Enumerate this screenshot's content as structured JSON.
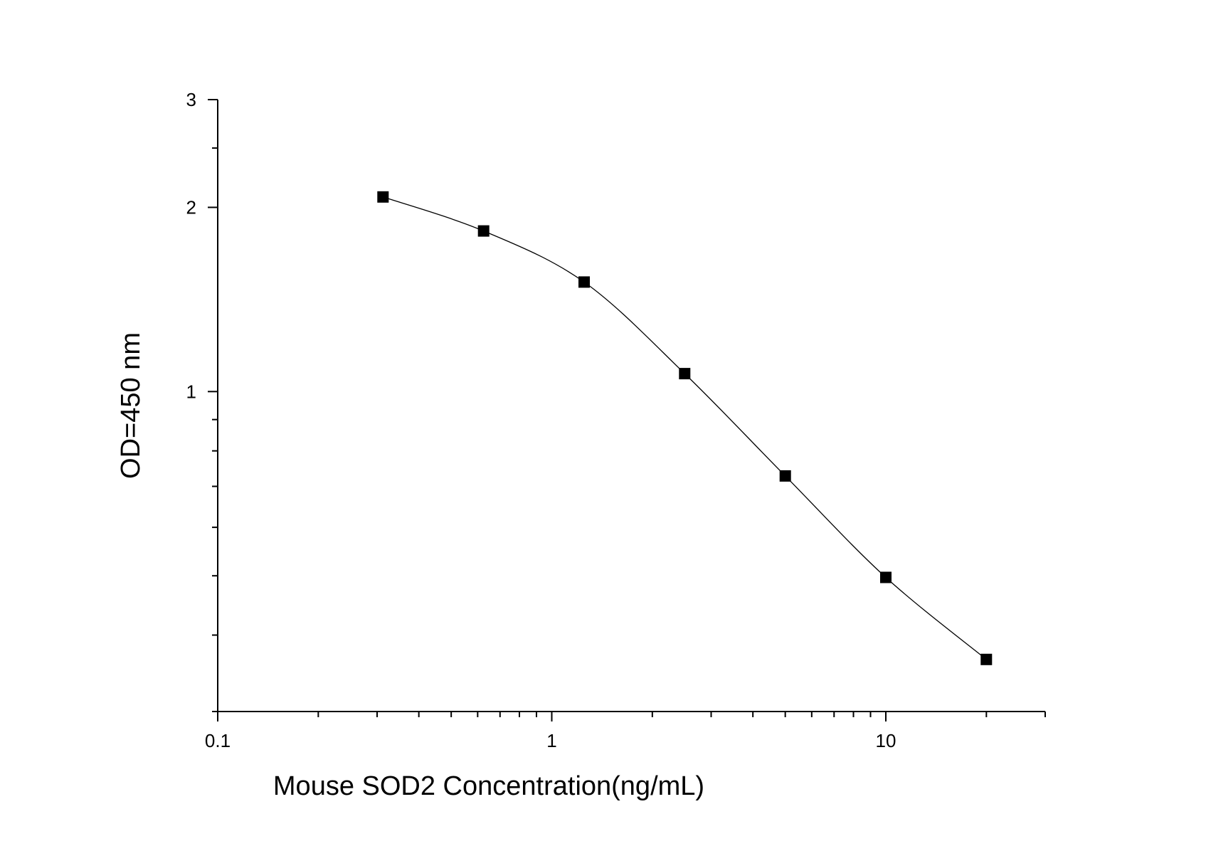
{
  "chart_data": {
    "type": "line",
    "title": "",
    "xlabel": "Mouse SOD2  Concentration(ng/mL)",
    "ylabel": "OD=450 nm",
    "x_scale": "log",
    "y_scale": "log",
    "xlim": [
      0.1,
      30
    ],
    "ylim": [
      0.3,
      3
    ],
    "x_ticks": [
      {
        "value": 0.1,
        "label": "0.1"
      },
      {
        "value": 1,
        "label": "1"
      },
      {
        "value": 10,
        "label": "10"
      }
    ],
    "y_ticks": [
      {
        "value": 1,
        "label": "1"
      },
      {
        "value": 2,
        "label": "2"
      },
      {
        "value": 3,
        "label": "3"
      }
    ],
    "grid": false,
    "legend": false,
    "marker": "square",
    "colors": {
      "line": "#000000",
      "marker": "#000000",
      "axis": "#000000"
    },
    "series": [
      {
        "x": [
          0.3125,
          0.625,
          1.25,
          2.5,
          5,
          10,
          20
        ],
        "y": [
          2.08,
          1.83,
          1.51,
          1.07,
          0.728,
          0.497,
          0.365
        ]
      }
    ]
  }
}
